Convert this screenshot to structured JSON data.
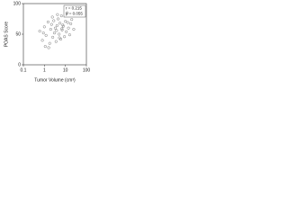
{
  "chart_data": {
    "type": "scatter",
    "ylabel": "POAS Score",
    "xlabel": "Tumor Volume (cm³)",
    "annotations": [
      "r = 0.215",
      "p = 0.055"
    ],
    "x": [
      0.6,
      0.8,
      1.0,
      1.2,
      1.5,
      1.8,
      2.0,
      2.2,
      2.5,
      2.8,
      3.0,
      3.3,
      3.6,
      4.0,
      4.5,
      5.0,
      5.5,
      6.0,
      6.5,
      7.0,
      8.0,
      9.0,
      10,
      11,
      12,
      14,
      16,
      18,
      20,
      25,
      1.1,
      2.4,
      3.8,
      5.2,
      7.5,
      0.9,
      1.6,
      4.2,
      6.8,
      13
    ],
    "values": [
      55,
      40,
      62,
      48,
      70,
      35,
      58,
      66,
      45,
      72,
      52,
      60,
      38,
      64,
      75,
      50,
      68,
      42,
      80,
      57,
      63,
      46,
      71,
      54,
      85,
      60,
      49,
      67,
      74,
      58,
      30,
      78,
      56,
      44,
      65,
      52,
      28,
      82,
      59,
      69
    ],
    "color": "#777777",
    "xlim": [
      0.1,
      100
    ],
    "xticks": [
      0.1,
      1,
      10,
      100
    ],
    "xscale": "log",
    "ylim": [
      0,
      100
    ],
    "yticks": [
      0,
      50,
      100
    ]
  }
}
